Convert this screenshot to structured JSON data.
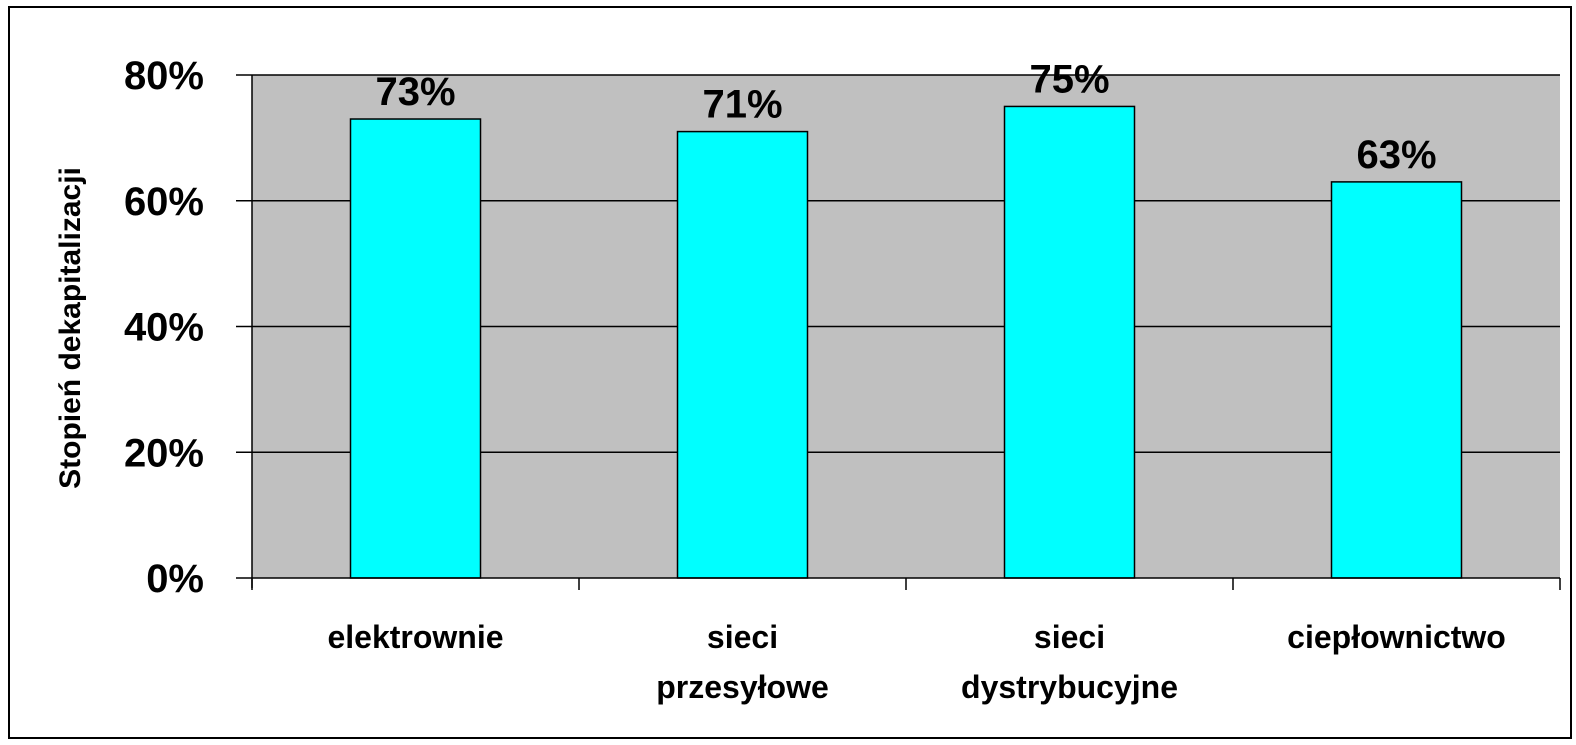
{
  "chart_data": {
    "type": "bar",
    "categories": [
      "elektrownie",
      "sieci przesyłowe",
      "sieci dystrybucyjne",
      "ciepłownictwo"
    ],
    "category_lines": [
      [
        "elektrownie"
      ],
      [
        "sieci",
        "przesyłowe"
      ],
      [
        "sieci",
        "dystrybucyjne"
      ],
      [
        "ciepłownictwo"
      ]
    ],
    "values": [
      73,
      71,
      75,
      63
    ],
    "data_labels": [
      "73%",
      "71%",
      "75%",
      "63%"
    ],
    "title": "",
    "xlabel": "",
    "ylabel": "Stopień dekapitalizacji",
    "ylim": [
      0,
      80
    ],
    "yticks": [
      0,
      20,
      40,
      60,
      80
    ],
    "ytick_labels": [
      "0%",
      "20%",
      "40%",
      "60%",
      "80%"
    ],
    "grid": true,
    "legend": "none",
    "colors": {
      "bar": "#00FFFF",
      "plot_background": "#C0C0C0",
      "page_background": "#FFFFFF",
      "gridline": "#000000"
    }
  }
}
